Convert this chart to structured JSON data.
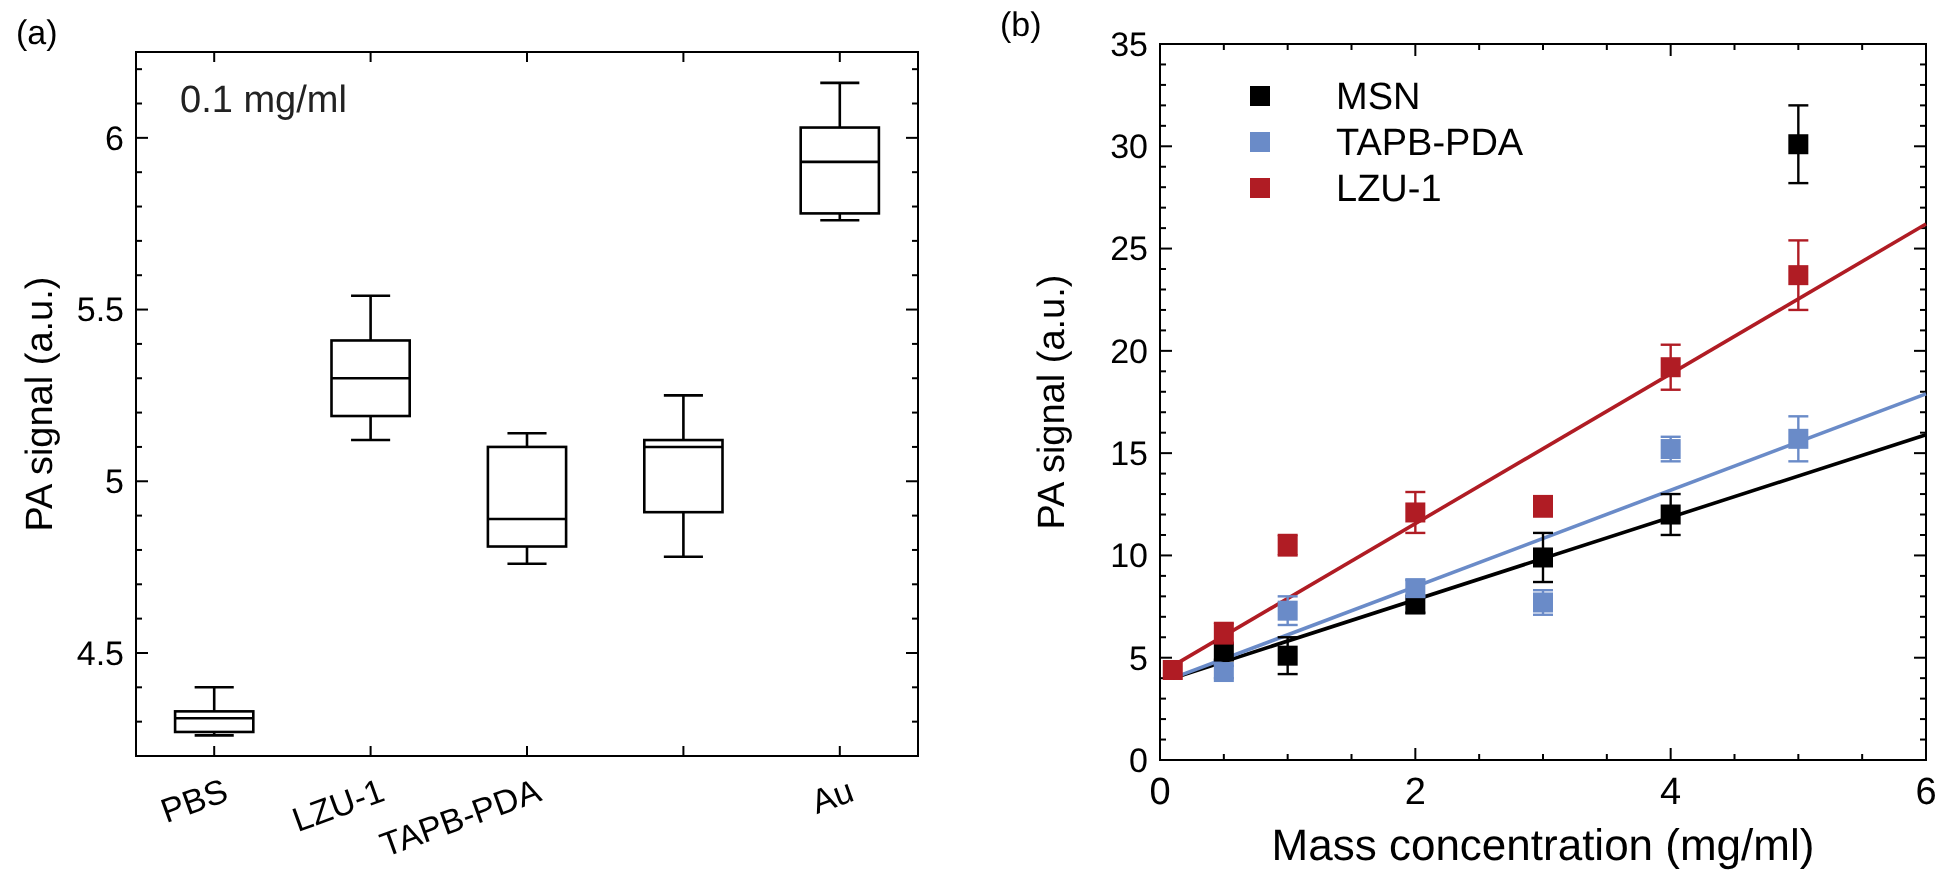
{
  "chart_data": [
    {
      "type": "box",
      "ylabel": "PA signal (a.u.)",
      "annotations": [
        "(a)",
        "0.1 mg/ml"
      ],
      "categories": [
        "PBS",
        "LZU-1",
        "TAPB-PDA",
        null,
        "Au"
      ],
      "ylim": [
        4.2,
        6.25
      ],
      "yticks": [
        {
          "value": 4.2,
          "label": null
        },
        {
          "value": 4.3,
          "label": null
        },
        {
          "value": 4.4,
          "label": null
        },
        4.5,
        {
          "value": 4.6,
          "label": null
        },
        {
          "value": 4.7,
          "label": null
        },
        {
          "value": 4.8,
          "label": null
        },
        {
          "value": 4.9,
          "label": null
        },
        5,
        {
          "value": 5.1,
          "label": null
        },
        {
          "value": 5.2,
          "label": null
        },
        {
          "value": 5.3,
          "label": null
        },
        {
          "value": 5.4,
          "label": null
        },
        5.5,
        {
          "value": 5.6,
          "label": null
        },
        {
          "value": 5.7,
          "label": null
        },
        {
          "value": 5.8,
          "label": null
        },
        {
          "value": 5.9,
          "label": null
        },
        6,
        {
          "value": 6.1,
          "label": null
        },
        {
          "value": 6.2,
          "label": null
        }
      ],
      "grid": false,
      "boxes": [
        {
          "low": 4.26,
          "q1": 4.27,
          "median": 4.31,
          "q3": 4.33,
          "high": 4.4
        },
        {
          "low": 5.12,
          "q1": 5.19,
          "median": 5.3,
          "q3": 5.41,
          "high": 5.54
        },
        {
          "low": 4.76,
          "q1": 4.81,
          "median": 4.89,
          "q3": 5.1,
          "high": 5.14
        },
        {
          "low": 4.78,
          "q1": 4.91,
          "median": 5.1,
          "q3": 5.12,
          "high": 5.25
        },
        {
          "low": 5.76,
          "q1": 5.78,
          "median": 5.93,
          "q3": 6.03,
          "high": 6.16
        }
      ]
    },
    {
      "type": "scatter",
      "xlabel": "Mass concentration (mg/ml)",
      "ylabel": "PA signal (a.u.)",
      "annotations": [
        "(b)"
      ],
      "xlim": [
        0,
        6
      ],
      "xticks": [
        0,
        {
          "value": 0.5,
          "label": null
        },
        {
          "value": 1,
          "label": null
        },
        {
          "value": 1.5,
          "label": null
        },
        2,
        {
          "value": 2.5,
          "label": null
        },
        {
          "value": 3,
          "label": null
        },
        {
          "value": 3.5,
          "label": null
        },
        4,
        {
          "value": 4.5,
          "label": null
        },
        {
          "value": 5,
          "label": null
        },
        {
          "value": 5.5,
          "label": null
        },
        6
      ],
      "ylim": [
        0,
        35
      ],
      "yticks": [
        0,
        {
          "value": 1,
          "label": null
        },
        {
          "value": 2,
          "label": null
        },
        {
          "value": 3,
          "label": null
        },
        {
          "value": 4,
          "label": null
        },
        5,
        {
          "value": 6,
          "label": null
        },
        {
          "value": 7,
          "label": null
        },
        {
          "value": 8,
          "label": null
        },
        {
          "value": 9,
          "label": null
        },
        10,
        {
          "value": 11,
          "label": null
        },
        {
          "value": 12,
          "label": null
        },
        {
          "value": 13,
          "label": null
        },
        {
          "value": 14,
          "label": null
        },
        15,
        {
          "value": 16,
          "label": null
        },
        {
          "value": 17,
          "label": null
        },
        {
          "value": 18,
          "label": null
        },
        {
          "value": 19,
          "label": null
        },
        20,
        {
          "value": 21,
          "label": null
        },
        {
          "value": 22,
          "label": null
        },
        {
          "value": 23,
          "label": null
        },
        {
          "value": 24,
          "label": null
        },
        25,
        {
          "value": 26,
          "label": null
        },
        {
          "value": 27,
          "label": null
        },
        {
          "value": 28,
          "label": null
        },
        {
          "value": 29,
          "label": null
        },
        30,
        {
          "value": 31,
          "label": null
        },
        {
          "value": 32,
          "label": null
        },
        {
          "value": 33,
          "label": null
        },
        {
          "value": 34,
          "label": null
        },
        35
      ],
      "grid": false,
      "legend": "top left",
      "marker": "square",
      "series": [
        {
          "name": "MSN",
          "color": "#000000",
          "x": [
            0.5,
            1,
            2,
            3,
            4,
            5
          ],
          "values": [
            5.3,
            5.1,
            7.6,
            9.9,
            12.0,
            30.1
          ],
          "errors": [
            0.4,
            0.9,
            0.4,
            1.2,
            1.0,
            1.9
          ]
        },
        {
          "name": "TAPB-PDA",
          "color": "#6a8bc8",
          "x": [
            0.5,
            1,
            2,
            3,
            4,
            5
          ],
          "values": [
            4.3,
            7.3,
            8.4,
            7.7,
            15.2,
            15.7
          ],
          "errors": [
            0.3,
            0.7,
            0.4,
            0.6,
            0.6,
            1.1
          ]
        },
        {
          "name": "LZU-1",
          "color": "#b01c24",
          "x": [
            0.1,
            0.5,
            1,
            2,
            3,
            4,
            5
          ],
          "values": [
            4.4,
            6.2,
            10.5,
            12.1,
            12.4,
            19.2,
            23.7
          ],
          "errors": [
            null,
            0.5,
            0.5,
            1.0,
            0.5,
            1.1,
            1.7
          ]
        },
        {
          "type": "line",
          "color": "#000000",
          "x": [
            0.1,
            6
          ],
          "values": [
            4.0,
            15.9
          ],
          "marker": "none"
        },
        {
          "type": "line",
          "color": "#6a8bc8",
          "x": [
            0.1,
            6
          ],
          "values": [
            4.0,
            17.9
          ],
          "marker": "none"
        },
        {
          "type": "line",
          "color": "#b01c24",
          "x": [
            0.1,
            6
          ],
          "values": [
            4.6,
            26.2
          ],
          "marker": "none"
        }
      ]
    }
  ]
}
